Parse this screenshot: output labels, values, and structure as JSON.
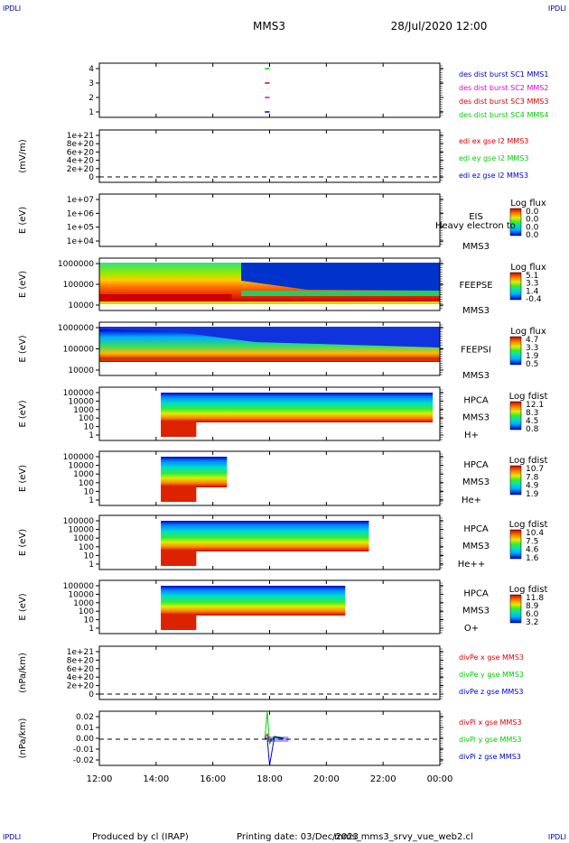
{
  "header": {
    "corner_label": "IPDLI",
    "spacecraft": "MMS3",
    "date": "28/Jul/2020 12:00"
  },
  "footer": {
    "produced_by": "Produced by cl (IRAP)",
    "printing_date": "Printing date: 03/Dec/2023",
    "filename": "mms_mms3_srvy_vue_web2.cl"
  },
  "colors": {
    "mms1": "#0000cc",
    "mms2": "#dd00dd",
    "mms3": "#dd0000",
    "mms4": "#00cc00",
    "x_comp": "#dd0000",
    "y_comp": "#00cc00",
    "z_comp": "#0000cc"
  },
  "chart_data": [
    {
      "type": "line",
      "panel": "burst-intervals",
      "yticks": [
        "4",
        "3",
        "2",
        "1"
      ],
      "ylim": [
        0.5,
        4.5
      ],
      "legend": [
        "des dist burst SC1 MMS1",
        "des dist burst SC2 MMS2",
        "des dist burst SC3 MMS3",
        "des dist burst SC4 MMS4"
      ],
      "series": [
        {
          "name": "des dist burst SC4 MMS4",
          "x": [
            "17:50",
            "18:00"
          ],
          "y": [
            4,
            4
          ]
        },
        {
          "name": "des dist burst SC3 MMS3",
          "x": [
            "17:50",
            "18:00"
          ],
          "y": [
            3,
            3
          ]
        },
        {
          "name": "des dist burst SC2 MMS2",
          "x": [
            "17:50",
            "18:00"
          ],
          "y": [
            2,
            2
          ]
        },
        {
          "name": "des dist burst SC1 MMS1",
          "x": [
            "17:50",
            "18:00"
          ],
          "y": [
            1,
            1
          ]
        }
      ]
    },
    {
      "type": "line",
      "panel": "edi-electric-field",
      "ylabel": "(mV/m)",
      "yticks": [
        "1e+21",
        "8e+20",
        "6e+20",
        "4e+20",
        "2e+20",
        "0"
      ],
      "ylim": [
        0,
        1e+21
      ],
      "legend": [
        "edi ex gse l2 MMS3",
        "edi ey gse l2 MMS3",
        "edi ez gse l2 MMS3"
      ],
      "series": []
    },
    {
      "type": "heatmap",
      "panel": "eis",
      "ylabel": "E (eV)",
      "yticks": [
        "1e+07",
        "1e+06",
        "1e+05",
        "1e+04"
      ],
      "ylim": [
        10000,
        10000000
      ],
      "log_y": true,
      "side_labels": [
        "EIS",
        "Heavy electron to",
        "MMS3"
      ],
      "colorbar_title": "Log flux",
      "colorbar_ticks": [
        "0.0",
        "0.0",
        "0.0",
        "0.0"
      ]
    },
    {
      "type": "heatmap",
      "panel": "feeps-electrons",
      "ylabel": "E (eV)",
      "yticks": [
        "1000000",
        "100000",
        "10000"
      ],
      "ylim": [
        10000,
        1000000
      ],
      "log_y": true,
      "side_labels": [
        "FEEPSE",
        "MMS3"
      ],
      "colorbar_title": "Log flux",
      "colorbar_ticks": [
        "5.1",
        "3.3",
        "1.4",
        "-0.4"
      ],
      "z_range": [
        -0.4,
        5.1
      ]
    },
    {
      "type": "heatmap",
      "panel": "feeps-ions",
      "ylabel": "E (eV)",
      "yticks": [
        "1000000",
        "100000",
        "10000"
      ],
      "ylim": [
        10000,
        1000000
      ],
      "log_y": true,
      "side_labels": [
        "FEEPSI",
        "MMS3"
      ],
      "colorbar_title": "Log flux",
      "colorbar_ticks": [
        "4.7",
        "3.3",
        "1.9",
        "0.5"
      ],
      "z_range": [
        0.5,
        4.7
      ]
    },
    {
      "type": "heatmap",
      "panel": "hpca-h",
      "ylabel": "E (eV)",
      "yticks": [
        "100000",
        "10000",
        "1000",
        "100",
        "10",
        "1"
      ],
      "ylim": [
        1,
        100000
      ],
      "log_y": true,
      "side_labels": [
        "HPCA",
        "MMS3",
        "H+"
      ],
      "colorbar_title": "Log fdist",
      "colorbar_ticks": [
        "12.1",
        "8.3",
        "4.5",
        "0.8"
      ],
      "z_range": [
        0.8,
        12.1
      ]
    },
    {
      "type": "heatmap",
      "panel": "hpca-he",
      "ylabel": "E (eV)",
      "yticks": [
        "100000",
        "10000",
        "1000",
        "100",
        "10",
        "1"
      ],
      "ylim": [
        1,
        100000
      ],
      "log_y": true,
      "side_labels": [
        "HPCA",
        "MMS3",
        "He+"
      ],
      "colorbar_title": "Log fdist",
      "colorbar_ticks": [
        "10.7",
        "7.8",
        "4.9",
        "1.9"
      ],
      "z_range": [
        1.9,
        10.7
      ]
    },
    {
      "type": "heatmap",
      "panel": "hpca-hepp",
      "ylabel": "E (eV)",
      "yticks": [
        "100000",
        "10000",
        "1000",
        "100",
        "10",
        "1"
      ],
      "ylim": [
        1,
        100000
      ],
      "log_y": true,
      "side_labels": [
        "HPCA",
        "MMS3",
        "He++"
      ],
      "colorbar_title": "Log fdist",
      "colorbar_ticks": [
        "10.4",
        "7.5",
        "4.6",
        "1.6"
      ],
      "z_range": [
        1.6,
        10.4
      ]
    },
    {
      "type": "heatmap",
      "panel": "hpca-o",
      "ylabel": "E (eV)",
      "yticks": [
        "100000",
        "10000",
        "1000",
        "100",
        "10",
        "1"
      ],
      "ylim": [
        1,
        100000
      ],
      "log_y": true,
      "side_labels": [
        "HPCA",
        "MMS3",
        "O+"
      ],
      "colorbar_title": "Log fdist",
      "colorbar_ticks": [
        "11.8",
        "8.9",
        "6.0",
        "3.2"
      ],
      "z_range": [
        3.2,
        11.8
      ]
    },
    {
      "type": "line",
      "panel": "div-pe",
      "ylabel": "(nPa/km)",
      "yticks": [
        "1e+21",
        "8e+20",
        "6e+20",
        "4e+20",
        "2e+20",
        "0"
      ],
      "ylim": [
        0,
        1e+21
      ],
      "legend": [
        "divPe x gse MMS3",
        "divPe y gse MMS3",
        "divPe z gse MMS3"
      ],
      "series": []
    },
    {
      "type": "line",
      "panel": "div-pi",
      "ylabel": "(nPa/km)",
      "yticks": [
        "0.02",
        "0.01",
        "0.00",
        "-0.01",
        "-0.02"
      ],
      "ylim": [
        -0.025,
        0.025
      ],
      "legend": [
        "divPi x gse MMS3",
        "divPi y gse MMS3",
        "divPi z gse MMS3"
      ],
      "series": [
        {
          "name": "divPi x gse MMS3",
          "x": [
            "17:50",
            "17:55",
            "18:00",
            "18:10",
            "18:30"
          ],
          "y": [
            0,
            0.004,
            -0.003,
            0.001,
            0
          ]
        },
        {
          "name": "divPi y gse MMS3",
          "x": [
            "17:50",
            "17:55",
            "18:00",
            "18:10",
            "18:30"
          ],
          "y": [
            0,
            0.025,
            -0.005,
            0.002,
            0
          ]
        },
        {
          "name": "divPi z gse MMS3",
          "x": [
            "17:50",
            "17:55",
            "18:00",
            "18:10",
            "18:30"
          ],
          "y": [
            0,
            0.0,
            -0.025,
            0.001,
            0
          ]
        }
      ]
    }
  ],
  "time_axis": {
    "ticks": [
      "12:00",
      "14:00",
      "16:00",
      "18:00",
      "20:00",
      "22:00",
      "00:00"
    ],
    "range": [
      "12:00",
      "00:00"
    ]
  }
}
